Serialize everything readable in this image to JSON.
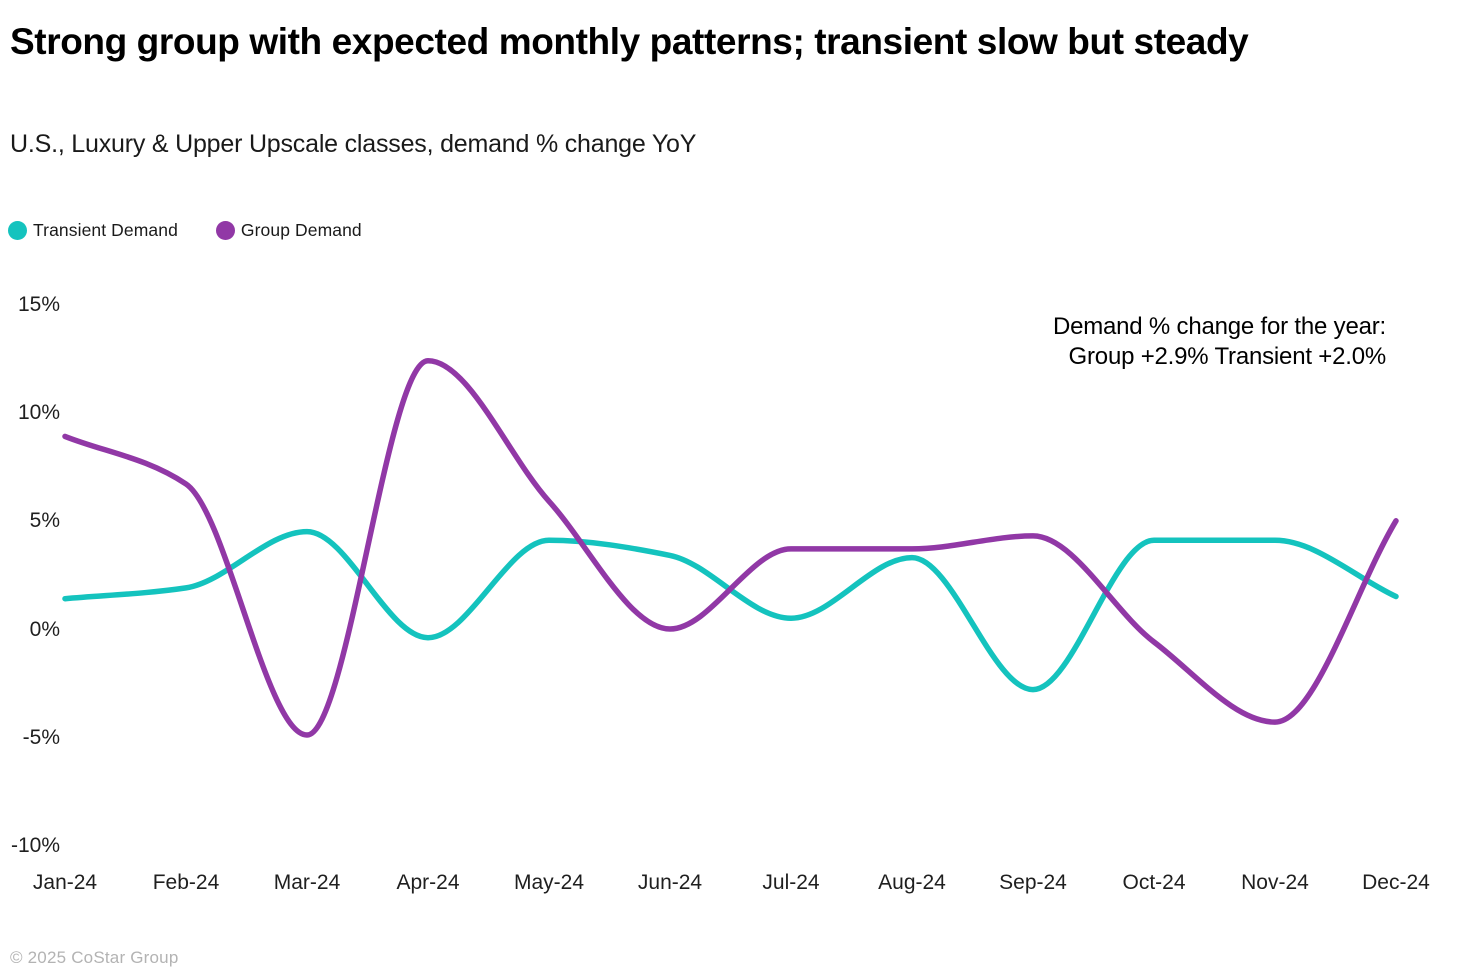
{
  "header": {
    "title": "Strong group with expected monthly patterns; transient slow but steady",
    "subtitle": "U.S., Luxury & Upper Upscale classes, demand % change YoY"
  },
  "legend": {
    "items": [
      {
        "label": "Transient Demand",
        "color": "#14C3BE"
      },
      {
        "label": "Group Demand",
        "color": "#9138A6"
      }
    ]
  },
  "annotation": {
    "line1": "Demand % change for the year:",
    "line2": "Group +2.9% Transient +2.0%"
  },
  "footer": {
    "copyright": "© 2025 CoStar Group"
  },
  "chart_data": {
    "type": "line",
    "title": "Strong group with expected monthly patterns; transient slow but steady",
    "subtitle": "U.S., Luxury & Upper Upscale classes, demand % change YoY",
    "ylabel": "demand % change YoY",
    "categories": [
      "Jan-24",
      "Feb-24",
      "Mar-24",
      "Apr-24",
      "May-24",
      "Jun-24",
      "Jul-24",
      "Aug-24",
      "Sep-24",
      "Oct-24",
      "Nov-24",
      "Dec-24"
    ],
    "series": [
      {
        "name": "Transient Demand",
        "color": "#14C3BE",
        "values": [
          1.4,
          1.9,
          4.5,
          -0.4,
          4.1,
          3.4,
          0.5,
          3.3,
          -2.8,
          4.1,
          4.1,
          1.5
        ]
      },
      {
        "name": "Group Demand",
        "color": "#9138A6",
        "values": [
          8.9,
          6.7,
          -4.9,
          12.4,
          5.9,
          0.0,
          3.7,
          3.7,
          4.3,
          -0.6,
          -4.3,
          5.0
        ]
      }
    ],
    "yticks": [
      15,
      10,
      5,
      0,
      -5,
      -10
    ],
    "ytick_suffix": "%",
    "ylim": [
      -10,
      15
    ],
    "grid": false,
    "legend_position": "top-left",
    "annotation": "Demand % change for the year: Group +2.9% Transient +2.0%"
  }
}
